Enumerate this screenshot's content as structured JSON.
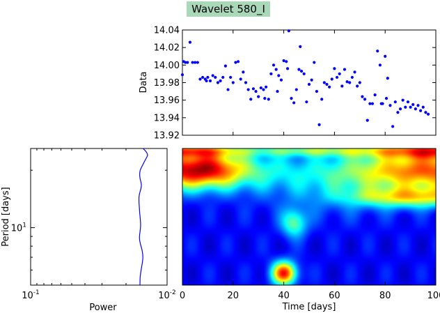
{
  "title": "Wavelet 580_I",
  "chart_data": [
    {
      "type": "scatter",
      "ylabel": "Data",
      "xlim": [
        0,
        100
      ],
      "ylim": [
        13.92,
        14.04
      ],
      "yticks": [
        "14.04",
        "14.02",
        "14.00",
        "13.98",
        "13.96",
        "13.94",
        "13.92"
      ],
      "color": "#0000ff",
      "points": [
        [
          0,
          13.989
        ],
        [
          0.5,
          14.004
        ],
        [
          1.2,
          14.003
        ],
        [
          2,
          14.003
        ],
        [
          3,
          14.026
        ],
        [
          4,
          14.003
        ],
        [
          5,
          14.003
        ],
        [
          6,
          14.003
        ],
        [
          7,
          13.984
        ],
        [
          8,
          13.986
        ],
        [
          9,
          13.984
        ],
        [
          9.5,
          13.982
        ],
        [
          10,
          13.986
        ],
        [
          11,
          13.982
        ],
        [
          12,
          13.988
        ],
        [
          13,
          13.986
        ],
        [
          14,
          13.98
        ],
        [
          15,
          13.982
        ],
        [
          16,
          13.986
        ],
        [
          17,
          13.999
        ],
        [
          18,
          13.972
        ],
        [
          19,
          13.986
        ],
        [
          20,
          13.98
        ],
        [
          21,
          14.003
        ],
        [
          22,
          14.004
        ],
        [
          23,
          13.984
        ],
        [
          24,
          13.992
        ],
        [
          25,
          13.98
        ],
        [
          26,
          13.972
        ],
        [
          27,
          13.961
        ],
        [
          28,
          13.973
        ],
        [
          29,
          13.97
        ],
        [
          30,
          13.964
        ],
        [
          31,
          13.974
        ],
        [
          32,
          13.972
        ],
        [
          32.5,
          13.962
        ],
        [
          33,
          13.975
        ],
        [
          34,
          13.961
        ],
        [
          35,
          13.99
        ],
        [
          36,
          14.0
        ],
        [
          37,
          13.995
        ],
        [
          37.5,
          13.97
        ],
        [
          38,
          13.988
        ],
        [
          39,
          13.983
        ],
        [
          40,
          14.005
        ],
        [
          41,
          14.004
        ],
        [
          41.5,
          13.996
        ],
        [
          42,
          14.039
        ],
        [
          43,
          13.962
        ],
        [
          44,
          13.957
        ],
        [
          45,
          13.972
        ],
        [
          46,
          13.995
        ],
        [
          46.5,
          14.021
        ],
        [
          47,
          13.993
        ],
        [
          48,
          13.99
        ],
        [
          49,
          13.958
        ],
        [
          50,
          13.978
        ],
        [
          51,
          13.983
        ],
        [
          52,
          14.003
        ],
        [
          53,
          13.97
        ],
        [
          54,
          13.932
        ],
        [
          55,
          13.961
        ],
        [
          56,
          13.98
        ],
        [
          57,
          13.978
        ],
        [
          58,
          13.975
        ],
        [
          59,
          13.984
        ],
        [
          60,
          13.996
        ],
        [
          61,
          13.986
        ],
        [
          62,
          13.99
        ],
        [
          63,
          13.976
        ],
        [
          64,
          13.995
        ],
        [
          65,
          13.981
        ],
        [
          66,
          13.98
        ],
        [
          67,
          13.986
        ],
        [
          68,
          13.992
        ],
        [
          69,
          13.976
        ],
        [
          70,
          13.98
        ],
        [
          71,
          13.964
        ],
        [
          72,
          13.961
        ],
        [
          73,
          13.937
        ],
        [
          74,
          13.956
        ],
        [
          75,
          13.956
        ],
        [
          76,
          13.966
        ],
        [
          77,
          14.016
        ],
        [
          78,
          14.0
        ],
        [
          78.5,
          13.956
        ],
        [
          79,
          13.956
        ],
        [
          80,
          14.01
        ],
        [
          80.5,
          13.962
        ],
        [
          81,
          13.985
        ],
        [
          82,
          13.954
        ],
        [
          83,
          13.93
        ],
        [
          84,
          13.958
        ],
        [
          85,
          13.946
        ],
        [
          86,
          13.95
        ],
        [
          87,
          13.96
        ],
        [
          88,
          13.952
        ],
        [
          89,
          13.958
        ],
        [
          90,
          13.952
        ],
        [
          91,
          13.955
        ],
        [
          92,
          13.95
        ],
        [
          93,
          13.954
        ],
        [
          94,
          13.948
        ],
        [
          95,
          13.952
        ],
        [
          96,
          13.946
        ],
        [
          97,
          13.944
        ]
      ]
    },
    {
      "type": "line",
      "xlabel": "Power",
      "ylabel": "Period [days]",
      "xscale": "log-reversed",
      "xlim": [
        0.1,
        0.01
      ],
      "xticks": [
        {
          "base": "10",
          "exp": "-1"
        },
        {
          "base": "10",
          "exp": "-2"
        }
      ],
      "yscale": "log",
      "ylim": [
        5,
        26
      ],
      "yticks": [
        {
          "value": 10,
          "base": "10",
          "exp": "1"
        }
      ],
      "color": "#0000ff",
      "series": [
        {
          "points": [
            [
              0.0158,
              5.0
            ],
            [
              0.0158,
              5.5
            ],
            [
              0.0155,
              6.0
            ],
            [
              0.0152,
              6.5
            ],
            [
              0.015,
              7.0
            ],
            [
              0.0152,
              7.6
            ],
            [
              0.0157,
              8.2
            ],
            [
              0.016,
              8.8
            ],
            [
              0.0158,
              9.5
            ],
            [
              0.0156,
              10.2
            ],
            [
              0.0157,
              11.0
            ],
            [
              0.0159,
              12.0
            ],
            [
              0.016,
              13.0
            ],
            [
              0.0161,
              14.0
            ],
            [
              0.016,
              15.0
            ],
            [
              0.0155,
              16.0
            ],
            [
              0.0154,
              17.0
            ],
            [
              0.0158,
              18.0
            ],
            [
              0.0159,
              19.0
            ],
            [
              0.0158,
              20.0
            ],
            [
              0.015,
              21.5
            ],
            [
              0.0143,
              23.0
            ],
            [
              0.0138,
              24.0
            ],
            [
              0.0142,
              25.0
            ],
            [
              0.015,
              26.0
            ]
          ]
        }
      ]
    },
    {
      "type": "heatmap",
      "xlabel": "Time [days]",
      "xlim": [
        0,
        100
      ],
      "xticks": [
        "0",
        "20",
        "40",
        "60",
        "80",
        "100"
      ],
      "yscale": "log",
      "ylim": [
        5,
        26
      ],
      "colormap": "jet",
      "blobs": [
        {
          "t": 0,
          "period": 20,
          "sigma_t": 22,
          "sigma_lnp": 0.16,
          "value": 0.7
        },
        {
          "t": 100,
          "period": 20,
          "sigma_t": 24,
          "sigma_lnp": 0.16,
          "value": 0.65
        },
        {
          "t": 100,
          "period": 25.5,
          "sigma_t": 20,
          "sigma_lnp": 0.07,
          "value": 0.55
        },
        {
          "t": 0,
          "period": 25.5,
          "sigma_t": 16,
          "sigma_lnp": 0.06,
          "value": 0.45
        },
        {
          "t": 50,
          "period": 25.5,
          "sigma_t": 18,
          "sigma_lnp": 0.05,
          "value": 0.3
        },
        {
          "t": 97,
          "period": 14.5,
          "sigma_t": 14,
          "sigma_lnp": 0.09,
          "value": 0.38
        },
        {
          "t": 78,
          "period": 14.5,
          "sigma_t": 12,
          "sigma_lnp": 0.08,
          "value": 0.18
        },
        {
          "t": 40,
          "period": 5.8,
          "sigma_t": 3.5,
          "sigma_lnp": 0.1,
          "value": 0.72
        },
        {
          "t": 44,
          "period": 10.6,
          "sigma_t": 3.5,
          "sigma_lnp": 0.12,
          "value": 0.35
        },
        {
          "t": 10,
          "period": 21,
          "sigma_t": 8,
          "sigma_lnp": 0.15,
          "value": 0.2
        },
        {
          "t": 60,
          "period": 17,
          "sigma_t": 20,
          "sigma_lnp": 0.25,
          "value": 0.18
        }
      ]
    }
  ]
}
